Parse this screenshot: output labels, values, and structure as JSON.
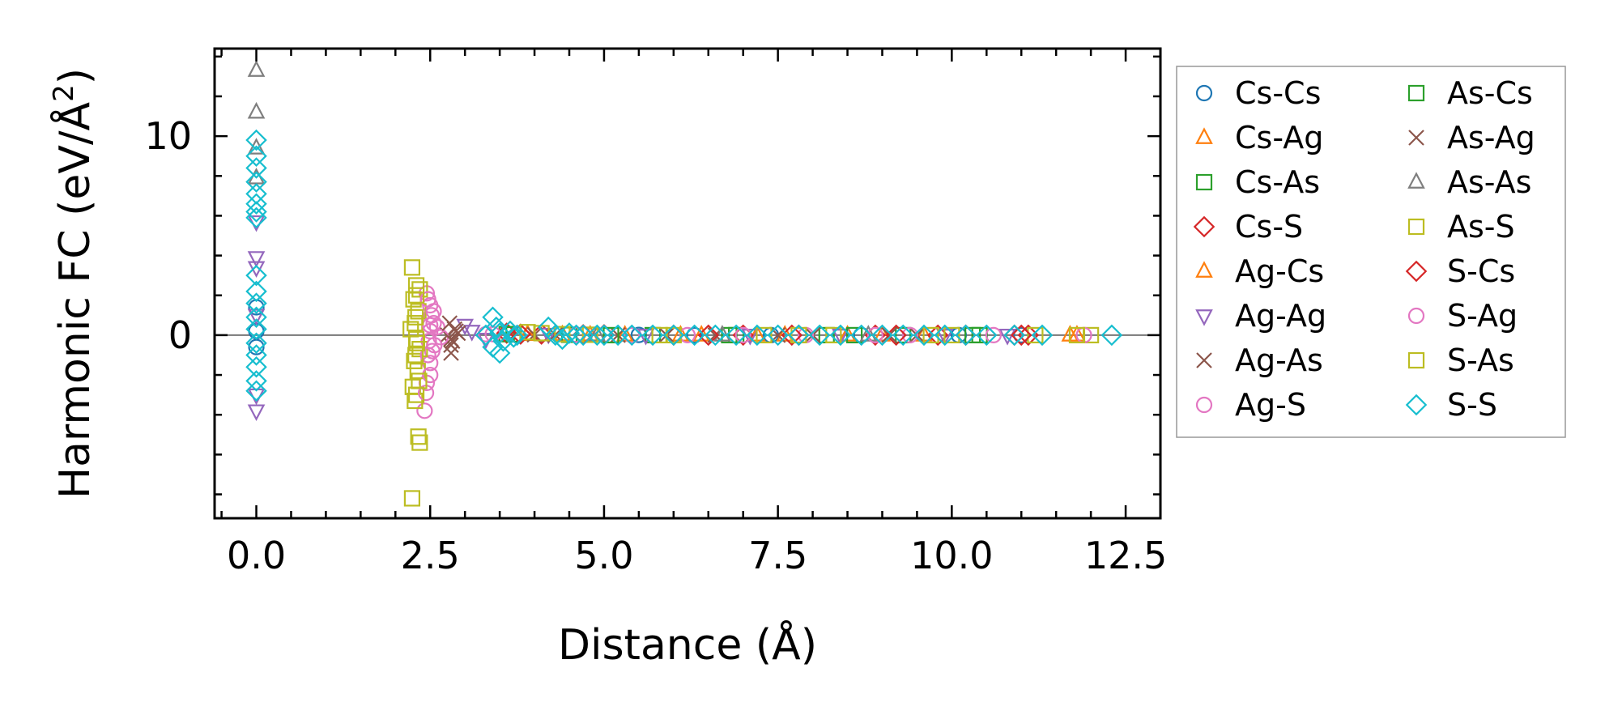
{
  "chart_data": {
    "type": "scatter",
    "title": "",
    "xlabel": "Distance (Å)",
    "ylabel_prefix": "Harmonic FC (eV/Å",
    "ylabel_sup": "2",
    "ylabel_suffix": ")",
    "xlim": [
      -0.6,
      13.0
    ],
    "ylim": [
      -9.2,
      14.4
    ],
    "xticks": [
      0.0,
      2.5,
      5.0,
      7.5,
      10.0,
      12.5
    ],
    "xtick_labels": [
      "0.0",
      "2.5",
      "5.0",
      "7.5",
      "10.0",
      "12.5"
    ],
    "yticks": [
      0,
      10
    ],
    "ytick_labels": [
      "0",
      "10"
    ],
    "x_minor_step": 0.5,
    "y_minor_step": 2,
    "zero_line": true,
    "legend_position": "outside-right",
    "legend_columns": 2,
    "series": [
      {
        "name": "Cs-Cs",
        "marker": "circle",
        "color": "#1f77b4",
        "points": [
          [
            0,
            0.2
          ],
          [
            0,
            1.4
          ],
          [
            0,
            -0.6
          ],
          [
            4.6,
            0.02
          ],
          [
            5.5,
            0.01
          ],
          [
            6.3,
            0.0
          ],
          [
            7.4,
            0.0
          ],
          [
            8.7,
            0.0
          ],
          [
            10.1,
            0.0
          ],
          [
            11.0,
            0.0
          ]
        ]
      },
      {
        "name": "Cs-Ag",
        "marker": "triangle-up",
        "color": "#ff7f0e",
        "points": [
          [
            3.9,
            0.05
          ],
          [
            4.4,
            0.02
          ],
          [
            5.3,
            0.0
          ],
          [
            6.1,
            0.0
          ],
          [
            7.2,
            0.0
          ],
          [
            8.5,
            0.0
          ],
          [
            9.6,
            0.0
          ],
          [
            11.7,
            0.0
          ]
        ]
      },
      {
        "name": "Cs-As",
        "marker": "square",
        "color": "#2ca02c",
        "points": [
          [
            3.6,
            0.05
          ],
          [
            4.5,
            0.02
          ],
          [
            5.7,
            0.0
          ],
          [
            6.9,
            0.0
          ],
          [
            8.2,
            0.0
          ],
          [
            9.3,
            0.0
          ],
          [
            10.4,
            0.0
          ]
        ]
      },
      {
        "name": "Cs-S",
        "marker": "diamond",
        "color": "#d62728",
        "points": [
          [
            3.6,
            0.1
          ],
          [
            4.1,
            0.05
          ],
          [
            5.0,
            0.02
          ],
          [
            6.0,
            0.0
          ],
          [
            7.0,
            0.0
          ],
          [
            7.8,
            0.0
          ],
          [
            8.9,
            0.0
          ],
          [
            9.8,
            0.0
          ],
          [
            10.9,
            0.0
          ],
          [
            11.1,
            0.0
          ]
        ]
      },
      {
        "name": "Ag-Cs",
        "marker": "triangle-up",
        "color": "#ff7f0e",
        "points": [
          [
            3.9,
            0.03
          ],
          [
            4.8,
            0.01
          ],
          [
            6.4,
            0.0
          ],
          [
            7.6,
            0.0
          ],
          [
            9.0,
            0.0
          ],
          [
            11.8,
            0.0
          ]
        ]
      },
      {
        "name": "Ag-Ag",
        "marker": "triangle-down",
        "color": "#9467bd",
        "points": [
          [
            0,
            3.9
          ],
          [
            0,
            3.4
          ],
          [
            0,
            -3.0
          ],
          [
            0,
            -3.8
          ],
          [
            0,
            5.7
          ],
          [
            0,
            1.0
          ],
          [
            3.0,
            0.5
          ],
          [
            3.1,
            0.2
          ],
          [
            3.3,
            -0.2
          ],
          [
            4.2,
            0.05
          ],
          [
            5.6,
            0.0
          ],
          [
            7.1,
            0.0
          ],
          [
            8.4,
            0.0
          ],
          [
            9.9,
            0.0
          ],
          [
            10.8,
            0.0
          ]
        ]
      },
      {
        "name": "Ag-As",
        "marker": "x",
        "color": "#8c564b",
        "points": [
          [
            2.8,
            -0.5
          ],
          [
            2.8,
            -0.2
          ],
          [
            2.85,
            0.3
          ],
          [
            2.9,
            0.1
          ],
          [
            2.75,
            0.0
          ],
          [
            2.8,
            -0.9
          ],
          [
            4.0,
            0.02
          ],
          [
            5.2,
            0.0
          ],
          [
            6.6,
            0.0
          ],
          [
            8.0,
            0.0
          ],
          [
            9.5,
            0.0
          ]
        ]
      },
      {
        "name": "Ag-S",
        "marker": "circle",
        "color": "#e377c2",
        "points": [
          [
            2.45,
            2.1
          ],
          [
            2.5,
            1.5
          ],
          [
            2.52,
            1.0
          ],
          [
            2.55,
            0.6
          ],
          [
            2.5,
            0.2
          ],
          [
            2.48,
            -0.3
          ],
          [
            2.53,
            -0.8
          ],
          [
            2.5,
            -1.4
          ],
          [
            2.45,
            -2.4
          ],
          [
            2.42,
            -3.8
          ],
          [
            2.6,
            0.4
          ],
          [
            2.65,
            -0.1
          ],
          [
            3.3,
            0.05
          ],
          [
            4.6,
            0.02
          ],
          [
            6.2,
            0.0
          ],
          [
            7.9,
            0.0
          ],
          [
            9.4,
            0.0
          ],
          [
            10.6,
            0.0
          ]
        ]
      },
      {
        "name": "As-Cs",
        "marker": "square",
        "color": "#2ca02c",
        "points": [
          [
            3.7,
            0.04
          ],
          [
            5.1,
            0.0
          ],
          [
            6.8,
            0.0
          ],
          [
            8.6,
            0.0
          ],
          [
            10.3,
            0.0
          ]
        ]
      },
      {
        "name": "As-Ag",
        "marker": "x",
        "color": "#8c564b",
        "points": [
          [
            2.82,
            -0.3
          ],
          [
            2.87,
            0.2
          ],
          [
            2.78,
            0.6
          ],
          [
            4.3,
            0.01
          ],
          [
            5.9,
            0.0
          ],
          [
            7.5,
            0.0
          ],
          [
            9.1,
            0.0
          ]
        ]
      },
      {
        "name": "As-As",
        "marker": "triangle-up",
        "color": "#7f7f7f",
        "points": [
          [
            0,
            13.3
          ],
          [
            0,
            11.2
          ],
          [
            0,
            9.4
          ],
          [
            0,
            7.9
          ],
          [
            4.9,
            0.0
          ],
          [
            6.7,
            0.0
          ],
          [
            8.8,
            0.0
          ]
        ]
      },
      {
        "name": "As-S",
        "marker": "square",
        "color": "#bcbd22",
        "points": [
          [
            2.24,
            3.4
          ],
          [
            2.3,
            2.5
          ],
          [
            2.35,
            2.3
          ],
          [
            2.26,
            1.8
          ],
          [
            2.33,
            1.2
          ],
          [
            2.28,
            0.6
          ],
          [
            2.22,
            0.3
          ],
          [
            2.3,
            -0.2
          ],
          [
            2.35,
            -0.7
          ],
          [
            2.27,
            -1.3
          ],
          [
            2.32,
            -1.8
          ],
          [
            2.25,
            -2.6
          ],
          [
            2.28,
            -3.3
          ],
          [
            2.33,
            -5.1
          ],
          [
            2.35,
            -5.4
          ],
          [
            2.24,
            -8.2
          ],
          [
            4.1,
            0.1
          ],
          [
            4.8,
            0.02
          ],
          [
            5.8,
            0.0
          ],
          [
            7.3,
            0.0
          ],
          [
            8.3,
            0.0
          ],
          [
            9.7,
            0.0
          ],
          [
            11.2,
            0.0
          ],
          [
            12.0,
            0.0
          ]
        ]
      },
      {
        "name": "S-Cs",
        "marker": "diamond",
        "color": "#d62728",
        "points": [
          [
            3.8,
            0.05
          ],
          [
            4.7,
            0.02
          ],
          [
            6.5,
            0.0
          ],
          [
            7.7,
            0.0
          ],
          [
            9.2,
            0.0
          ],
          [
            10.2,
            0.0
          ],
          [
            11.0,
            0.0
          ]
        ]
      },
      {
        "name": "S-Ag",
        "marker": "circle",
        "color": "#e377c2",
        "points": [
          [
            2.47,
            1.8
          ],
          [
            2.55,
            1.2
          ],
          [
            2.5,
            0.5
          ],
          [
            2.56,
            -0.5
          ],
          [
            2.47,
            -1.0
          ],
          [
            2.5,
            -2.0
          ],
          [
            2.44,
            -2.9
          ],
          [
            3.4,
            0.05
          ],
          [
            5.4,
            0.0
          ],
          [
            7.0,
            0.0
          ],
          [
            8.9,
            0.0
          ],
          [
            11.9,
            0.0
          ]
        ]
      },
      {
        "name": "S-As",
        "marker": "square",
        "color": "#bcbd22",
        "points": [
          [
            2.3,
            2.0
          ],
          [
            2.29,
            0.9
          ],
          [
            2.31,
            -0.4
          ],
          [
            2.29,
            -1.0
          ],
          [
            2.34,
            -2.3
          ],
          [
            2.3,
            -3.0
          ],
          [
            3.9,
            0.15
          ],
          [
            4.4,
            0.05
          ],
          [
            6.0,
            0.0
          ],
          [
            7.8,
            0.0
          ],
          [
            10.0,
            0.0
          ],
          [
            11.8,
            0.0
          ]
        ]
      },
      {
        "name": "S-S",
        "marker": "diamond",
        "color": "#17becf",
        "points": [
          [
            0,
            9.8
          ],
          [
            0,
            9.0
          ],
          [
            0,
            8.4
          ],
          [
            0,
            7.7
          ],
          [
            0,
            7.1
          ],
          [
            0,
            6.6
          ],
          [
            0,
            6.2
          ],
          [
            0,
            5.9
          ],
          [
            0,
            3.0
          ],
          [
            0,
            2.2
          ],
          [
            0,
            1.6
          ],
          [
            0,
            0.9
          ],
          [
            0,
            0.3
          ],
          [
            0,
            -0.4
          ],
          [
            0,
            -1.0
          ],
          [
            0,
            -1.6
          ],
          [
            0,
            -2.3
          ],
          [
            0,
            -2.8
          ],
          [
            3.4,
            0.9
          ],
          [
            3.45,
            0.4
          ],
          [
            3.5,
            0.1
          ],
          [
            3.55,
            -0.3
          ],
          [
            3.4,
            -0.6
          ],
          [
            3.5,
            -0.9
          ],
          [
            3.65,
            0.2
          ],
          [
            3.7,
            -0.1
          ],
          [
            3.75,
            0.0
          ],
          [
            3.3,
            0.0
          ],
          [
            4.2,
            0.4
          ],
          [
            4.3,
            0.0
          ],
          [
            4.4,
            -0.2
          ],
          [
            4.5,
            0.1
          ],
          [
            4.6,
            0.0
          ],
          [
            4.7,
            0.0
          ],
          [
            4.9,
            0.0
          ],
          [
            5.0,
            0.0
          ],
          [
            5.2,
            0.0
          ],
          [
            5.4,
            0.0
          ],
          [
            5.7,
            0.0
          ],
          [
            6.0,
            0.0
          ],
          [
            6.3,
            0.0
          ],
          [
            6.6,
            0.0
          ],
          [
            6.9,
            0.0
          ],
          [
            7.2,
            0.0
          ],
          [
            7.5,
            0.0
          ],
          [
            7.8,
            0.0
          ],
          [
            8.1,
            0.0
          ],
          [
            8.4,
            0.0
          ],
          [
            8.7,
            0.0
          ],
          [
            9.0,
            0.0
          ],
          [
            9.3,
            0.0
          ],
          [
            9.6,
            0.0
          ],
          [
            9.9,
            0.0
          ],
          [
            10.2,
            0.0
          ],
          [
            10.5,
            0.0
          ],
          [
            10.9,
            0.0
          ],
          [
            11.3,
            0.0
          ],
          [
            12.3,
            0.0
          ]
        ]
      }
    ]
  }
}
